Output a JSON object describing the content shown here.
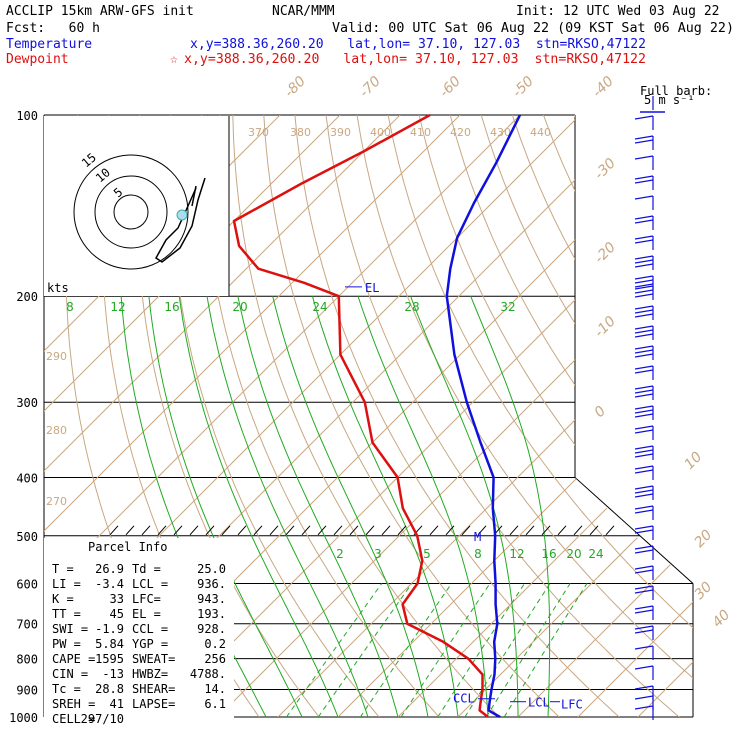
{
  "header": {
    "line1_left": "ACCLIP 15km ARW-GFS init",
    "line1_mid": "NCAR/MMM",
    "line1_right": "Init: 12 UTC Wed 03 Aug 22",
    "line2_left": "Fcst:   60 h",
    "line2_right": "Valid: 00 UTC Sat 06 Aug 22 (09 KST Sat 06 Aug 22)",
    "temp_label": "Temperature",
    "temp_info": "x,y=388.36,260.20   lat,lon= 37.10, 127.03  stn=RKSO,47122",
    "dew_label": "Dewpoint",
    "dew_info": "x,y=388.36,260.20   lat,lon= 37.10, 127.03  stn=RKSO,47122",
    "dew_star": "☆",
    "colors": {
      "temperature": "#1010dd",
      "dewpoint": "#dd1010"
    }
  },
  "barb_key": {
    "line1": "Full barb:",
    "line2": "5 m s⁻¹"
  },
  "hodograph": {
    "units": "kts",
    "ring_labels": [
      "5",
      "10",
      "15"
    ]
  },
  "chart_data": {
    "type": "line",
    "title": "",
    "y_axis": {
      "type": "log-pressure",
      "ylim": [
        1000,
        100
      ],
      "ticks": [
        100,
        200,
        300,
        400,
        500,
        600,
        700,
        800,
        900,
        1000
      ]
    },
    "isotherm_labels_top": [
      "-80",
      "-70",
      "-60",
      "-50",
      "-40"
    ],
    "isotherm_labels_right": [
      "-30",
      "-20",
      "-10",
      "0",
      "10",
      "20",
      "30",
      "40"
    ],
    "theta_labels": [
      "370",
      "380",
      "390",
      "400",
      "410",
      "420",
      "430",
      "440"
    ],
    "theta_labels_left": [
      "290",
      "280",
      "270"
    ],
    "thetae_labels": [
      "8",
      "12",
      "16",
      "20",
      "24",
      "28",
      "32"
    ],
    "mixing_ratio_labels": [
      "2",
      "3",
      "5",
      "8",
      "12",
      "16",
      "20",
      "24"
    ],
    "series": [
      {
        "name": "Temperature",
        "points": [
          [
            1000,
            27
          ],
          [
            975,
            24
          ],
          [
            950,
            23
          ],
          [
            925,
            22
          ],
          [
            900,
            21
          ],
          [
            850,
            19
          ],
          [
            800,
            16.5
          ],
          [
            750,
            13.5
          ],
          [
            700,
            11
          ],
          [
            650,
            7.5
          ],
          [
            600,
            4
          ],
          [
            550,
            0
          ],
          [
            500,
            -4
          ],
          [
            450,
            -9
          ],
          [
            400,
            -14
          ],
          [
            350,
            -22
          ],
          [
            300,
            -31
          ],
          [
            250,
            -41
          ],
          [
            200,
            -52
          ],
          [
            180,
            -56
          ],
          [
            160,
            -60
          ],
          [
            140,
            -63
          ],
          [
            120,
            -66
          ],
          [
            100,
            -70
          ]
        ]
      },
      {
        "name": "Dewpoint",
        "points": [
          [
            1000,
            25
          ],
          [
            975,
            22.5
          ],
          [
            950,
            21.5
          ],
          [
            925,
            20.5
          ],
          [
            900,
            19.5
          ],
          [
            850,
            17
          ],
          [
            800,
            12
          ],
          [
            750,
            5
          ],
          [
            700,
            -4
          ],
          [
            650,
            -8
          ],
          [
            600,
            -9
          ],
          [
            550,
            -12
          ],
          [
            500,
            -17
          ],
          [
            450,
            -24
          ],
          [
            400,
            -30
          ],
          [
            350,
            -40
          ],
          [
            300,
            -48
          ],
          [
            250,
            -60
          ],
          [
            200,
            -70
          ],
          [
            190,
            -78
          ],
          [
            180,
            -88
          ],
          [
            165,
            -95
          ],
          [
            150,
            -100
          ],
          [
            130,
            -95
          ],
          [
            115,
            -90
          ],
          [
            100,
            -85
          ]
        ]
      }
    ],
    "markers": {
      "el_label": "EL",
      "el_pressure": 193,
      "lcl_label": "LCL",
      "ccl_label": "CCL",
      "lfc_label": "LFC",
      "m_label": "M"
    }
  },
  "parcel_info": {
    "title": "Parcel Info",
    "rows": [
      [
        "T  =",
        "26.9",
        "Td =",
        "25.0"
      ],
      [
        "LI =",
        "-3.4",
        "LCL =",
        "936."
      ],
      [
        "K  =",
        "33",
        "LFC=",
        "943."
      ],
      [
        "TT =",
        "45",
        "EL =",
        "193."
      ],
      [
        "SWI =",
        "-1.9",
        "CCL =",
        "928."
      ],
      [
        "PW =",
        "5.84",
        "YGP =",
        "0.2"
      ],
      [
        "CAPE =",
        "1595",
        "SWEAT=",
        "256"
      ],
      [
        "CIN =",
        "-13",
        "HWBZ=",
        "4788."
      ],
      [
        "Tc =",
        "28.8",
        "SHEAR=",
        "14."
      ],
      [
        "SREH =",
        "41",
        "LAPSE=",
        "6.1"
      ],
      [
        "CELL =",
        "297/10",
        "",
        ""
      ]
    ]
  }
}
